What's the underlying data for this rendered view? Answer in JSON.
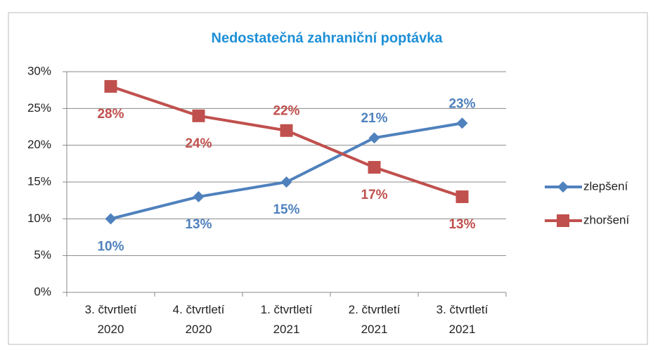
{
  "chart_data": {
    "type": "line",
    "title": "Nedostatečná zahraniční poptávka",
    "categories": [
      "3. čtvrtletí 2020",
      "4. čtvrtletí 2020",
      "1. čtvrtletí 2021",
      "2. čtvrtletí 2021",
      "3. čtvrtletí 2021"
    ],
    "series": [
      {
        "name": "zlepšení",
        "color": "#4f81bd",
        "marker": "diamond",
        "values": [
          10,
          13,
          15,
          21,
          23
        ],
        "value_labels": [
          "10%",
          "13%",
          "15%",
          "21%",
          "23%"
        ]
      },
      {
        "name": "zhoršení",
        "color": "#c0504d",
        "marker": "square",
        "values": [
          28,
          24,
          22,
          17,
          13
        ],
        "value_labels": [
          "28%",
          "24%",
          "22%",
          "17%",
          "13%"
        ]
      }
    ],
    "ylim": [
      0,
      30
    ],
    "yticks": [
      {
        "value": 0,
        "label": "0%"
      },
      {
        "value": 5,
        "label": "5%"
      },
      {
        "value": 10,
        "label": "10%"
      },
      {
        "value": 15,
        "label": "15%"
      },
      {
        "value": 20,
        "label": "20%"
      },
      {
        "value": 25,
        "label": "25%"
      },
      {
        "value": 30,
        "label": "30%"
      }
    ],
    "grid": true,
    "legend": "right"
  }
}
